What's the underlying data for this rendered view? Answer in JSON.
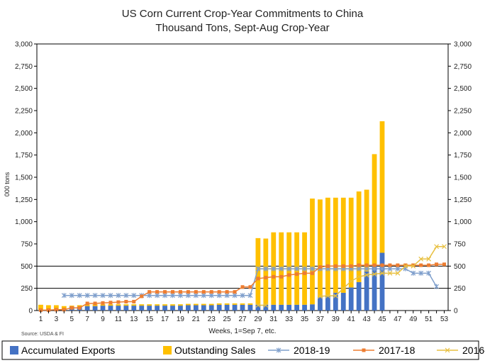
{
  "chart_data": {
    "type": "bar",
    "title": "US Corn Current Crop-Year Commitments to China",
    "subtitle": "Thousand Tons, Sept-Aug Crop-Year",
    "xlabel": "Weeks, 1=Sep 7, etc.",
    "ylabel": "000 tons",
    "source": "Source: USDA & FI",
    "ylim": [
      0,
      3000
    ],
    "yticks": [
      0,
      250,
      500,
      750,
      1000,
      1250,
      1500,
      1750,
      2000,
      2250,
      2500,
      2750,
      3000
    ],
    "ytick_labels": [
      "0",
      "250",
      "500",
      "750",
      "1,000",
      "1,250",
      "1,500",
      "1,750",
      "2,000",
      "2,250",
      "2,500",
      "2,750",
      "3,000"
    ],
    "weeks": [
      1,
      2,
      3,
      4,
      5,
      6,
      7,
      8,
      9,
      10,
      11,
      12,
      13,
      14,
      15,
      16,
      17,
      18,
      19,
      20,
      21,
      22,
      23,
      24,
      25,
      26,
      27,
      28,
      29,
      30,
      31,
      32,
      33,
      34,
      35,
      36,
      37,
      38,
      39,
      40,
      41,
      42,
      43,
      44,
      45,
      46,
      47,
      48,
      49,
      50,
      51,
      52,
      53
    ],
    "xtick_labels": [
      "1",
      "3",
      "5",
      "7",
      "9",
      "11",
      "13",
      "15",
      "17",
      "19",
      "21",
      "23",
      "25",
      "27",
      "29",
      "31",
      "33",
      "35",
      "37",
      "39",
      "41",
      "43",
      "45",
      "47",
      "49",
      "51",
      "53"
    ],
    "grid": "horizontal at 250 and 500",
    "legend_position": "bottom",
    "stacked": true,
    "series": [
      {
        "name": "Accumulated Exports",
        "kind": "bar",
        "color": "#4472c4",
        "values": [
          5,
          5,
          5,
          10,
          40,
          40,
          50,
          50,
          55,
          55,
          55,
          55,
          55,
          55,
          55,
          55,
          55,
          55,
          55,
          60,
          60,
          60,
          60,
          65,
          65,
          65,
          65,
          65,
          65,
          65,
          65,
          65,
          65,
          65,
          65,
          70,
          150,
          160,
          200,
          200,
          260,
          320,
          440,
          510,
          650,
          null,
          null,
          null,
          null,
          null,
          null,
          null,
          null
        ]
      },
      {
        "name": "Outstanding Sales",
        "kind": "bar",
        "color": "#ffc000",
        "values": [
          60,
          55,
          55,
          40,
          15,
          20,
          20,
          20,
          15,
          15,
          15,
          15,
          15,
          15,
          15,
          15,
          15,
          15,
          15,
          15,
          15,
          15,
          15,
          15,
          15,
          15,
          15,
          15,
          750,
          745,
          815,
          815,
          815,
          815,
          815,
          1190,
          1100,
          1110,
          1070,
          1070,
          1010,
          1020,
          920,
          1250,
          1480,
          null,
          null,
          null,
          null,
          null,
          null,
          null,
          null
        ]
      },
      {
        "name": "2018-19",
        "kind": "line",
        "color": "#7f9fcc",
        "marker": "asterisk",
        "values": [
          null,
          null,
          null,
          170,
          170,
          170,
          170,
          170,
          170,
          170,
          170,
          170,
          170,
          170,
          170,
          170,
          170,
          170,
          170,
          170,
          170,
          170,
          170,
          170,
          170,
          170,
          170,
          170,
          470,
          470,
          470,
          470,
          470,
          470,
          470,
          470,
          470,
          470,
          470,
          470,
          470,
          470,
          470,
          470,
          470,
          470,
          470,
          470,
          420,
          420,
          420,
          270,
          null
        ]
      },
      {
        "name": "2017-18",
        "kind": "line",
        "color": "#ed7d31",
        "marker": "square",
        "values": [
          5,
          5,
          10,
          10,
          30,
          30,
          80,
          80,
          85,
          90,
          95,
          100,
          100,
          160,
          210,
          210,
          210,
          210,
          210,
          210,
          210,
          210,
          210,
          210,
          210,
          210,
          265,
          265,
          360,
          370,
          380,
          380,
          400,
          410,
          420,
          420,
          490,
          500,
          500,
          500,
          500,
          510,
          510,
          510,
          510,
          510,
          510,
          510,
          510,
          510,
          510,
          520,
          520
        ]
      },
      {
        "name": "2016-17",
        "kind": "line",
        "color": "#e8c040",
        "marker": "x",
        "values": [
          null,
          null,
          null,
          null,
          null,
          null,
          null,
          null,
          null,
          null,
          null,
          null,
          null,
          null,
          null,
          null,
          null,
          null,
          null,
          null,
          null,
          null,
          null,
          null,
          null,
          null,
          null,
          null,
          60,
          60,
          null,
          null,
          null,
          null,
          null,
          null,
          160,
          165,
          165,
          250,
          330,
          380,
          400,
          410,
          420,
          420,
          420,
          500,
          500,
          580,
          580,
          720,
          720
        ]
      }
    ],
    "legend": [
      "Accumulated Exports",
      "Outstanding Sales",
      "2018-19",
      "2017-18",
      "2016-17"
    ]
  }
}
